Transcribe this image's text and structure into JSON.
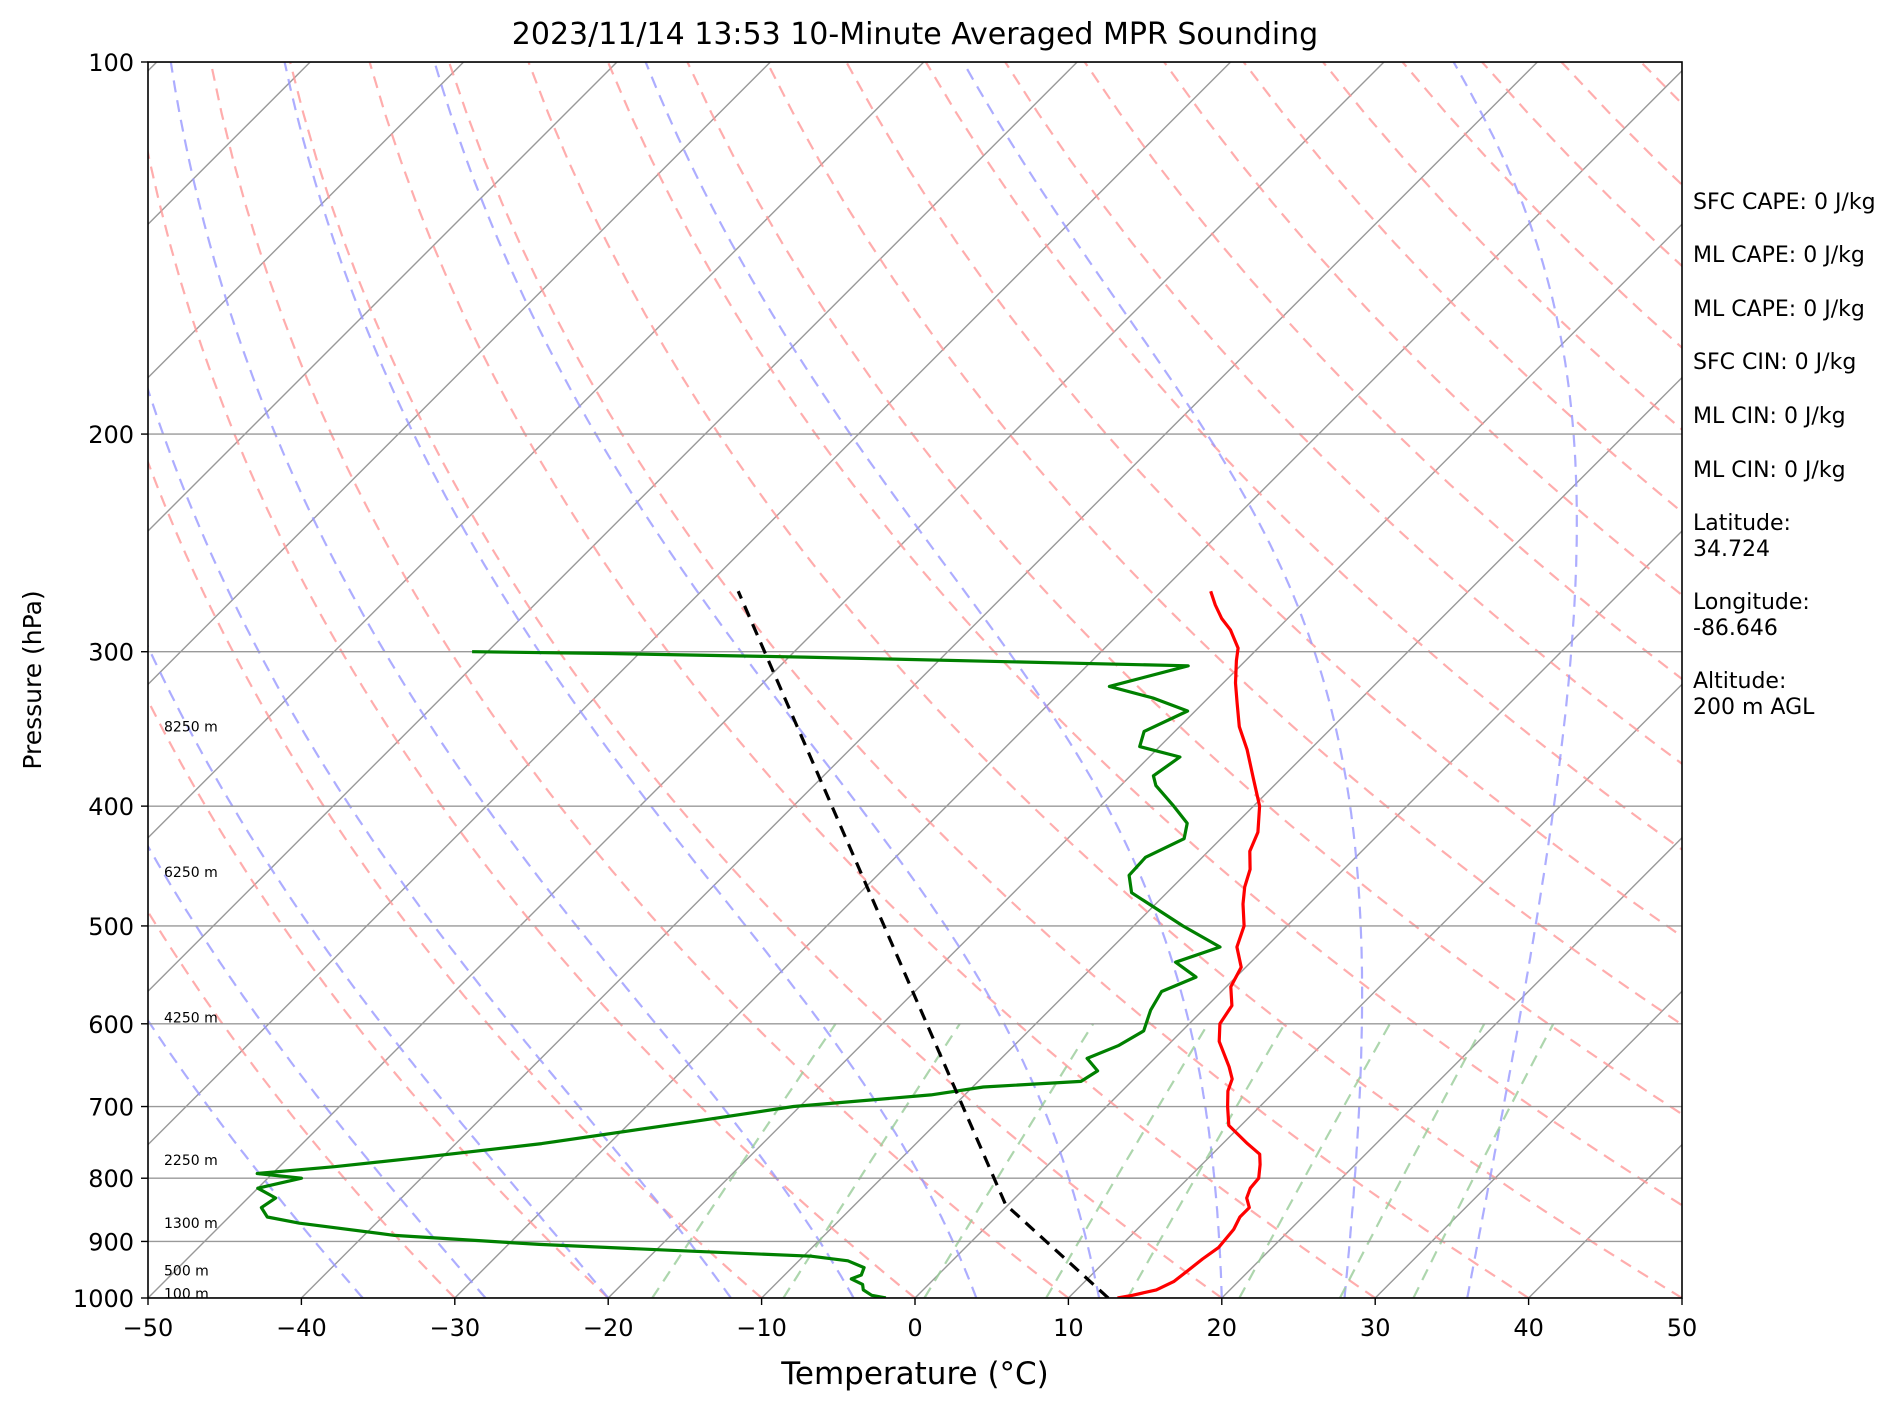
{
  "chart_data": {
    "type": "line",
    "title": "2023/11/14 13:53 10-Minute Averaged MPR Sounding",
    "xlabel": "Temperature (°C)",
    "ylabel": "Pressure (hPa)",
    "xlim": [
      -50,
      50
    ],
    "ylim": [
      1000,
      100
    ],
    "y_scale": "log",
    "skew": "skew-T",
    "grid": true,
    "x_ticks": [
      "−50",
      "−40",
      "−30",
      "−20",
      "−10",
      "0",
      "10",
      "20",
      "30",
      "40",
      "50"
    ],
    "y_ticks": [
      "100",
      "200",
      "300",
      "400",
      "500",
      "600",
      "700",
      "800",
      "900",
      "1000"
    ],
    "height_labels": [
      {
        "label": "8250 m",
        "p": 345
      },
      {
        "label": "6250 m",
        "p": 452
      },
      {
        "label": "4250 m",
        "p": 593
      },
      {
        "label": "2250 m",
        "p": 773
      },
      {
        "label": "1300 m",
        "p": 870
      },
      {
        "label": "500 m",
        "p": 950
      },
      {
        "label": "100 m",
        "p": 992
      }
    ],
    "series": [
      {
        "role": "temperature",
        "color": "#ff0000",
        "points": [
          {
            "p": 1000,
            "t": 13.2
          },
          {
            "p": 995,
            "t": 14.0
          },
          {
            "p": 985,
            "t": 15.2
          },
          {
            "p": 970,
            "t": 15.8
          },
          {
            "p": 950,
            "t": 16.0
          },
          {
            "p": 930,
            "t": 16.2
          },
          {
            "p": 910,
            "t": 16.5
          },
          {
            "p": 880,
            "t": 16.3
          },
          {
            "p": 860,
            "t": 15.9
          },
          {
            "p": 845,
            "t": 15.9
          },
          {
            "p": 830,
            "t": 15.1
          },
          {
            "p": 815,
            "t": 14.7
          },
          {
            "p": 800,
            "t": 14.6
          },
          {
            "p": 780,
            "t": 13.8
          },
          {
            "p": 765,
            "t": 13.1
          },
          {
            "p": 750,
            "t": 11.6
          },
          {
            "p": 725,
            "t": 9.2
          },
          {
            "p": 700,
            "t": 7.9
          },
          {
            "p": 680,
            "t": 6.9
          },
          {
            "p": 665,
            "t": 6.4
          },
          {
            "p": 650,
            "t": 5.4
          },
          {
            "p": 620,
            "t": 3.1
          },
          {
            "p": 600,
            "t": 2.0
          },
          {
            "p": 580,
            "t": 1.6
          },
          {
            "p": 560,
            "t": 0.3
          },
          {
            "p": 540,
            "t": -0.3
          },
          {
            "p": 520,
            "t": -1.9
          },
          {
            "p": 500,
            "t": -2.8
          },
          {
            "p": 480,
            "t": -4.3
          },
          {
            "p": 465,
            "t": -5.3
          },
          {
            "p": 450,
            "t": -6.1
          },
          {
            "p": 435,
            "t": -7.3
          },
          {
            "p": 420,
            "t": -8.0
          },
          {
            "p": 400,
            "t": -9.6
          },
          {
            "p": 380,
            "t": -11.8
          },
          {
            "p": 360,
            "t": -14.1
          },
          {
            "p": 345,
            "t": -16.1
          },
          {
            "p": 330,
            "t": -17.8
          },
          {
            "p": 318,
            "t": -19.2
          },
          {
            "p": 305,
            "t": -20.6
          },
          {
            "p": 298,
            "t": -21.3
          },
          {
            "p": 288,
            "t": -23.0
          },
          {
            "p": 282,
            "t": -24.3
          },
          {
            "p": 275,
            "t": -25.6
          },
          {
            "p": 268,
            "t": -26.8
          }
        ]
      },
      {
        "role": "dewpoint",
        "color": "#008000",
        "points": [
          {
            "p": 1000,
            "t": -1.9
          },
          {
            "p": 995,
            "t": -3.0
          },
          {
            "p": 985,
            "t": -3.9
          },
          {
            "p": 975,
            "t": -4.3
          },
          {
            "p": 965,
            "t": -5.4
          },
          {
            "p": 958,
            "t": -5.0
          },
          {
            "p": 945,
            "t": -5.3
          },
          {
            "p": 933,
            "t": -6.8
          },
          {
            "p": 925,
            "t": -9.5
          },
          {
            "p": 915,
            "t": -19.0
          },
          {
            "p": 905,
            "t": -28.0
          },
          {
            "p": 890,
            "t": -38.0
          },
          {
            "p": 870,
            "t": -45.0
          },
          {
            "p": 860,
            "t": -47.5
          },
          {
            "p": 845,
            "t": -48.5
          },
          {
            "p": 830,
            "t": -48.2
          },
          {
            "p": 815,
            "t": -50.0
          },
          {
            "p": 800,
            "t": -47.8
          },
          {
            "p": 793,
            "t": -51.0
          },
          {
            "p": 783,
            "t": -46.4
          },
          {
            "p": 770,
            "t": -41.5
          },
          {
            "p": 750,
            "t": -34.4
          },
          {
            "p": 720,
            "t": -26.0
          },
          {
            "p": 700,
            "t": -20.4
          },
          {
            "p": 685,
            "t": -12.2
          },
          {
            "p": 675,
            "t": -9.3
          },
          {
            "p": 668,
            "t": -3.3
          },
          {
            "p": 655,
            "t": -2.9
          },
          {
            "p": 640,
            "t": -4.4
          },
          {
            "p": 625,
            "t": -3.2
          },
          {
            "p": 608,
            "t": -2.5
          },
          {
            "p": 585,
            "t": -3.4
          },
          {
            "p": 565,
            "t": -3.9
          },
          {
            "p": 550,
            "t": -2.6
          },
          {
            "p": 535,
            "t": -4.9
          },
          {
            "p": 520,
            "t": -3.0
          },
          {
            "p": 500,
            "t": -6.8
          },
          {
            "p": 470,
            "t": -12.3
          },
          {
            "p": 455,
            "t": -13.6
          },
          {
            "p": 440,
            "t": -13.7
          },
          {
            "p": 425,
            "t": -12.4
          },
          {
            "p": 413,
            "t": -13.2
          },
          {
            "p": 400,
            "t": -15.2
          },
          {
            "p": 385,
            "t": -17.7
          },
          {
            "p": 378,
            "t": -18.5
          },
          {
            "p": 365,
            "t": -18.0
          },
          {
            "p": 358,
            "t": -21.3
          },
          {
            "p": 348,
            "t": -22.0
          },
          {
            "p": 335,
            "t": -20.5
          },
          {
            "p": 327,
            "t": -23.6
          },
          {
            "p": 320,
            "t": -27.2
          },
          {
            "p": 308,
            "t": -23.4
          },
          {
            "p": 303,
            "t": -49.0
          },
          {
            "p": 301,
            "t": -62.0
          },
          {
            "p": 300,
            "t": -71.0
          }
        ]
      },
      {
        "role": "parcel",
        "color": "#000000",
        "style": "dashed",
        "points": [
          {
            "p": 1000,
            "t": 12.6
          },
          {
            "p": 840,
            "t": -0.2
          },
          {
            "p": 268,
            "t": -57.6
          }
        ]
      }
    ]
  },
  "stats": [
    {
      "name": "sfc-cape-label",
      "text": "SFC CAPE: 0 J/kg"
    },
    {
      "name": "ml-cape-label",
      "text": "ML CAPE: 0 J/kg"
    },
    {
      "name": "ml-cape-label-2",
      "text": "ML CAPE: 0 J/kg"
    },
    {
      "name": "sfc-cin-label",
      "text": "SFC CIN: 0 J/kg"
    },
    {
      "name": "ml-cin-label",
      "text": "ML CIN: 0 J/kg"
    },
    {
      "name": "ml-cin-label-2",
      "text": "ML CIN: 0 J/kg"
    },
    {
      "name": "latitude-label",
      "text": "Latitude:\n34.724"
    },
    {
      "name": "longitude-label",
      "text": "Longitude:\n-86.646"
    },
    {
      "name": "altitude-label",
      "text": "Altitude:\n200 m AGL"
    }
  ],
  "colors": {
    "temperature": "#ff0000",
    "dewpoint": "#008000",
    "parcel": "#000000",
    "isotherms": "#999999",
    "dry_adiabats": "#ff9999",
    "moist_adiabats": "#9999ff",
    "mixing_ratio": "#99cc99"
  }
}
